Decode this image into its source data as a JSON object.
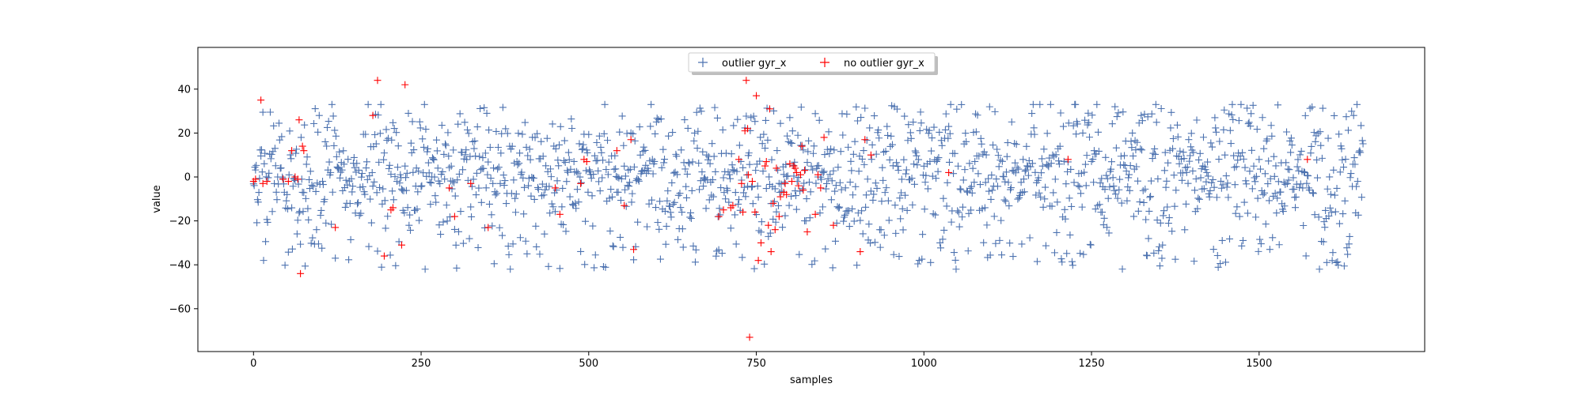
{
  "chart_data": {
    "type": "scatter",
    "title": "",
    "xlabel": "samples",
    "ylabel": "value",
    "xlim": [
      -83,
      1747
    ],
    "ylim": [
      -79.5,
      59
    ],
    "x_ticks": [
      0,
      250,
      500,
      750,
      1000,
      1250,
      1500
    ],
    "y_ticks": [
      -60,
      -40,
      -20,
      0,
      20,
      40
    ],
    "legend_position": "top-center",
    "n_samples": 1656,
    "series": [
      {
        "name": "outlier gyr_x",
        "color": "#4c72b0",
        "marker": "+",
        "description_range": [
          -42,
          33
        ],
        "points": []
      },
      {
        "name": "no outlier gyr_x",
        "color": "#ff0000",
        "marker": "+",
        "points": [
          [
            0,
            -2
          ],
          [
            3,
            -1
          ],
          [
            11,
            35
          ],
          [
            14,
            -3
          ],
          [
            20,
            -2
          ],
          [
            44,
            -1
          ],
          [
            52,
            -2
          ],
          [
            57,
            12
          ],
          [
            62,
            0
          ],
          [
            66,
            -1
          ],
          [
            68,
            26
          ],
          [
            70,
            -44
          ],
          [
            73,
            14
          ],
          [
            75,
            12
          ],
          [
            122,
            -23
          ],
          [
            178,
            28
          ],
          [
            185,
            44
          ],
          [
            195,
            -36
          ],
          [
            205,
            -15
          ],
          [
            208,
            -14
          ],
          [
            221,
            -31
          ],
          [
            226,
            42
          ],
          [
            292,
            -5
          ],
          [
            300,
            -18
          ],
          [
            324,
            -3
          ],
          [
            350,
            -23
          ],
          [
            450,
            -5
          ],
          [
            457,
            -17
          ],
          [
            488,
            -3
          ],
          [
            493,
            8
          ],
          [
            497,
            7
          ],
          [
            542,
            12
          ],
          [
            553,
            -13
          ],
          [
            563,
            17
          ],
          [
            567,
            -33
          ],
          [
            694,
            -18
          ],
          [
            701,
            -15
          ],
          [
            712,
            -14
          ],
          [
            715,
            -13
          ],
          [
            724,
            8
          ],
          [
            728,
            -3
          ],
          [
            730,
            -16
          ],
          [
            733,
            21
          ],
          [
            735,
            44
          ],
          [
            737,
            22
          ],
          [
            738,
            1
          ],
          [
            740,
            -73
          ],
          [
            744,
            -2
          ],
          [
            748,
            -16
          ],
          [
            750,
            37
          ],
          [
            753,
            -38
          ],
          [
            757,
            -30
          ],
          [
            763,
            5
          ],
          [
            765,
            7
          ],
          [
            768,
            -22
          ],
          [
            770,
            31
          ],
          [
            772,
            -34
          ],
          [
            775,
            -12
          ],
          [
            778,
            -24
          ],
          [
            780,
            4
          ],
          [
            784,
            -18
          ],
          [
            786,
            -9
          ],
          [
            791,
            -7
          ],
          [
            793,
            -3
          ],
          [
            795,
            -8
          ],
          [
            800,
            6
          ],
          [
            803,
            -2
          ],
          [
            806,
            5
          ],
          [
            808,
            4
          ],
          [
            810,
            2
          ],
          [
            813,
            -4
          ],
          [
            816,
            1
          ],
          [
            818,
            14
          ],
          [
            820,
            -6
          ],
          [
            822,
            3
          ],
          [
            826,
            -25
          ],
          [
            838,
            -17
          ],
          [
            842,
            1
          ],
          [
            846,
            -5
          ],
          [
            851,
            18
          ],
          [
            865,
            -22
          ],
          [
            905,
            -34
          ],
          [
            912,
            17
          ],
          [
            921,
            10
          ],
          [
            1037,
            2
          ],
          [
            1215,
            8
          ],
          [
            1572,
            8
          ]
        ]
      }
    ]
  }
}
